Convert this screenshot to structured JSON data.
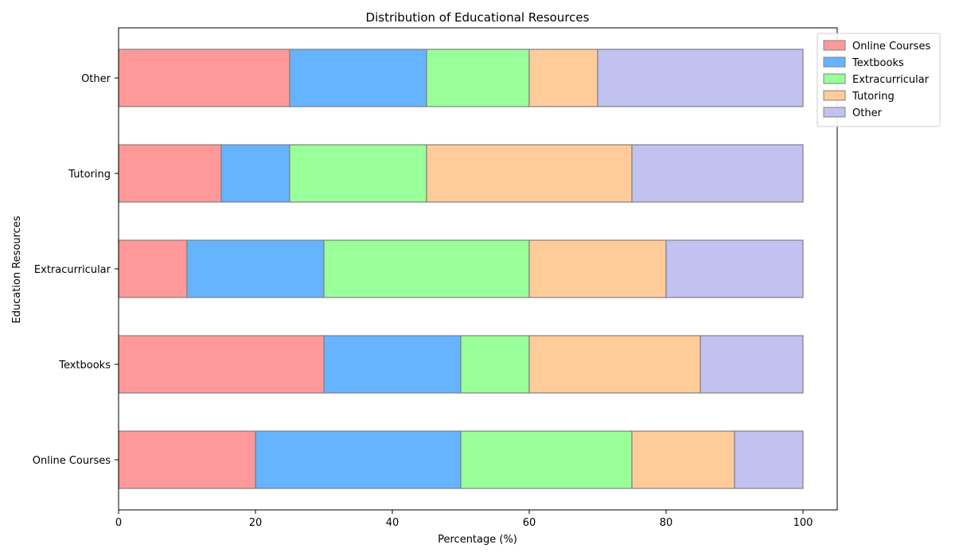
{
  "chart_data": {
    "type": "bar",
    "orientation": "horizontal",
    "stacked": true,
    "title": "Distribution of Educational Resources",
    "xlabel": "Percentage (%)",
    "ylabel": "Education Resources",
    "xlim": [
      0,
      105
    ],
    "xticks": [
      0,
      20,
      40,
      60,
      80,
      100
    ],
    "categories": [
      "Online Courses",
      "Textbooks",
      "Extracurricular",
      "Tutoring",
      "Other"
    ],
    "series": [
      {
        "name": "Online Courses",
        "color": "#ff9999",
        "values": [
          20,
          30,
          10,
          15,
          25
        ]
      },
      {
        "name": "Textbooks",
        "color": "#66b3ff",
        "values": [
          30,
          20,
          20,
          10,
          20
        ]
      },
      {
        "name": "Extracurricular",
        "color": "#99ff99",
        "values": [
          25,
          10,
          30,
          20,
          15
        ]
      },
      {
        "name": "Tutoring",
        "color": "#ffcc99",
        "values": [
          15,
          25,
          20,
          30,
          10
        ]
      },
      {
        "name": "Other",
        "color": "#c2c2f0",
        "values": [
          10,
          15,
          20,
          25,
          30
        ]
      }
    ],
    "legend_position": "top-right, outside plot",
    "grid": false,
    "edge_color": "#808080"
  }
}
